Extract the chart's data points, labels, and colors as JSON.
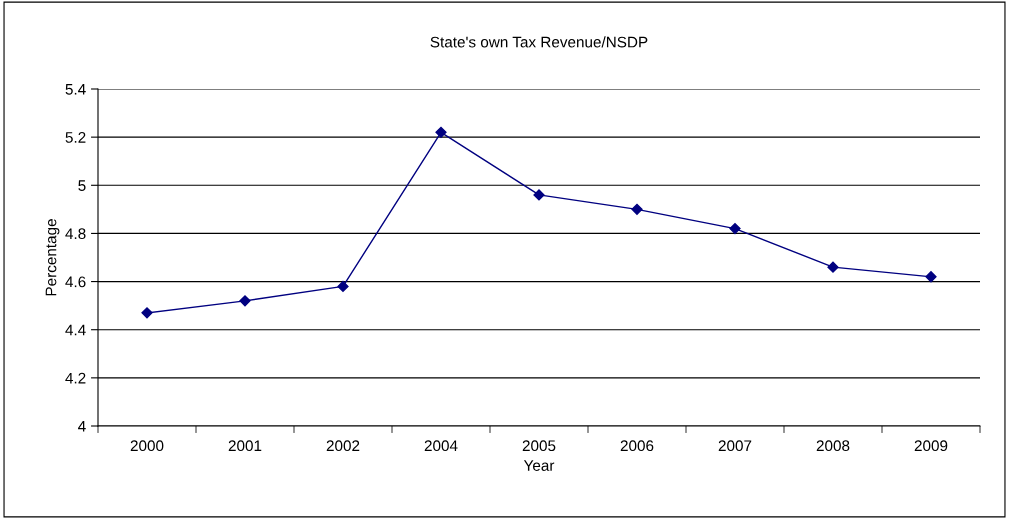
{
  "chart_data": {
    "type": "line",
    "title": "State's own Tax Revenue/NSDP",
    "xlabel": "Year",
    "ylabel": "Percentage",
    "categories": [
      "2000",
      "2001",
      "2002",
      "2004",
      "2005",
      "2006",
      "2007",
      "2008",
      "2009"
    ],
    "series": [
      {
        "color": "#000080",
        "values": [
          4.47,
          4.52,
          4.58,
          5.22,
          4.96,
          4.9,
          4.82,
          4.66,
          4.62
        ]
      }
    ],
    "ylim": [
      4,
      5.4
    ],
    "yticks": [
      4,
      {
        "value": 4.2,
        "label": "4.2"
      },
      {
        "value": 4.4,
        "label": "4.4"
      },
      {
        "value": 4.6,
        "label": "4.6"
      },
      {
        "value": 4.8,
        "label": "4.8"
      },
      5,
      {
        "value": 5.2,
        "label": "5.2"
      },
      {
        "value": 5.4,
        "label": "5.4"
      }
    ],
    "grid": "y",
    "marker": "diamond",
    "line_style": "solid",
    "legend": false
  }
}
